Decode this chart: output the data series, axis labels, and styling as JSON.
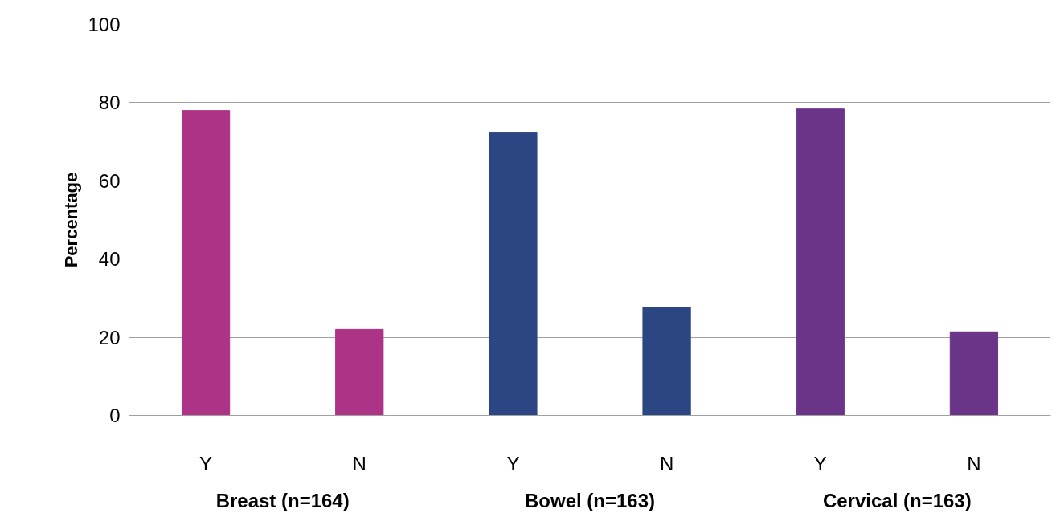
{
  "chart_data": {
    "type": "bar",
    "ylabel": "Percentage",
    "categories": [
      "Y",
      "N",
      "Y",
      "N",
      "Y",
      "N"
    ],
    "values": [
      78,
      22,
      72.3,
      27.6,
      78.4,
      21.4
    ],
    "colors": [
      "#ad3386",
      "#ad3386",
      "#2c4583",
      "#2c4583",
      "#6a3489",
      "#6a3489"
    ],
    "annotations": [
      "Breast (n=164)",
      "Bowel (n=163)",
      "Cervical (n=163)"
    ],
    "ylim": [
      0,
      100
    ],
    "yticks": [
      0,
      20,
      40,
      60,
      80,
      100
    ],
    "grid": "y"
  }
}
